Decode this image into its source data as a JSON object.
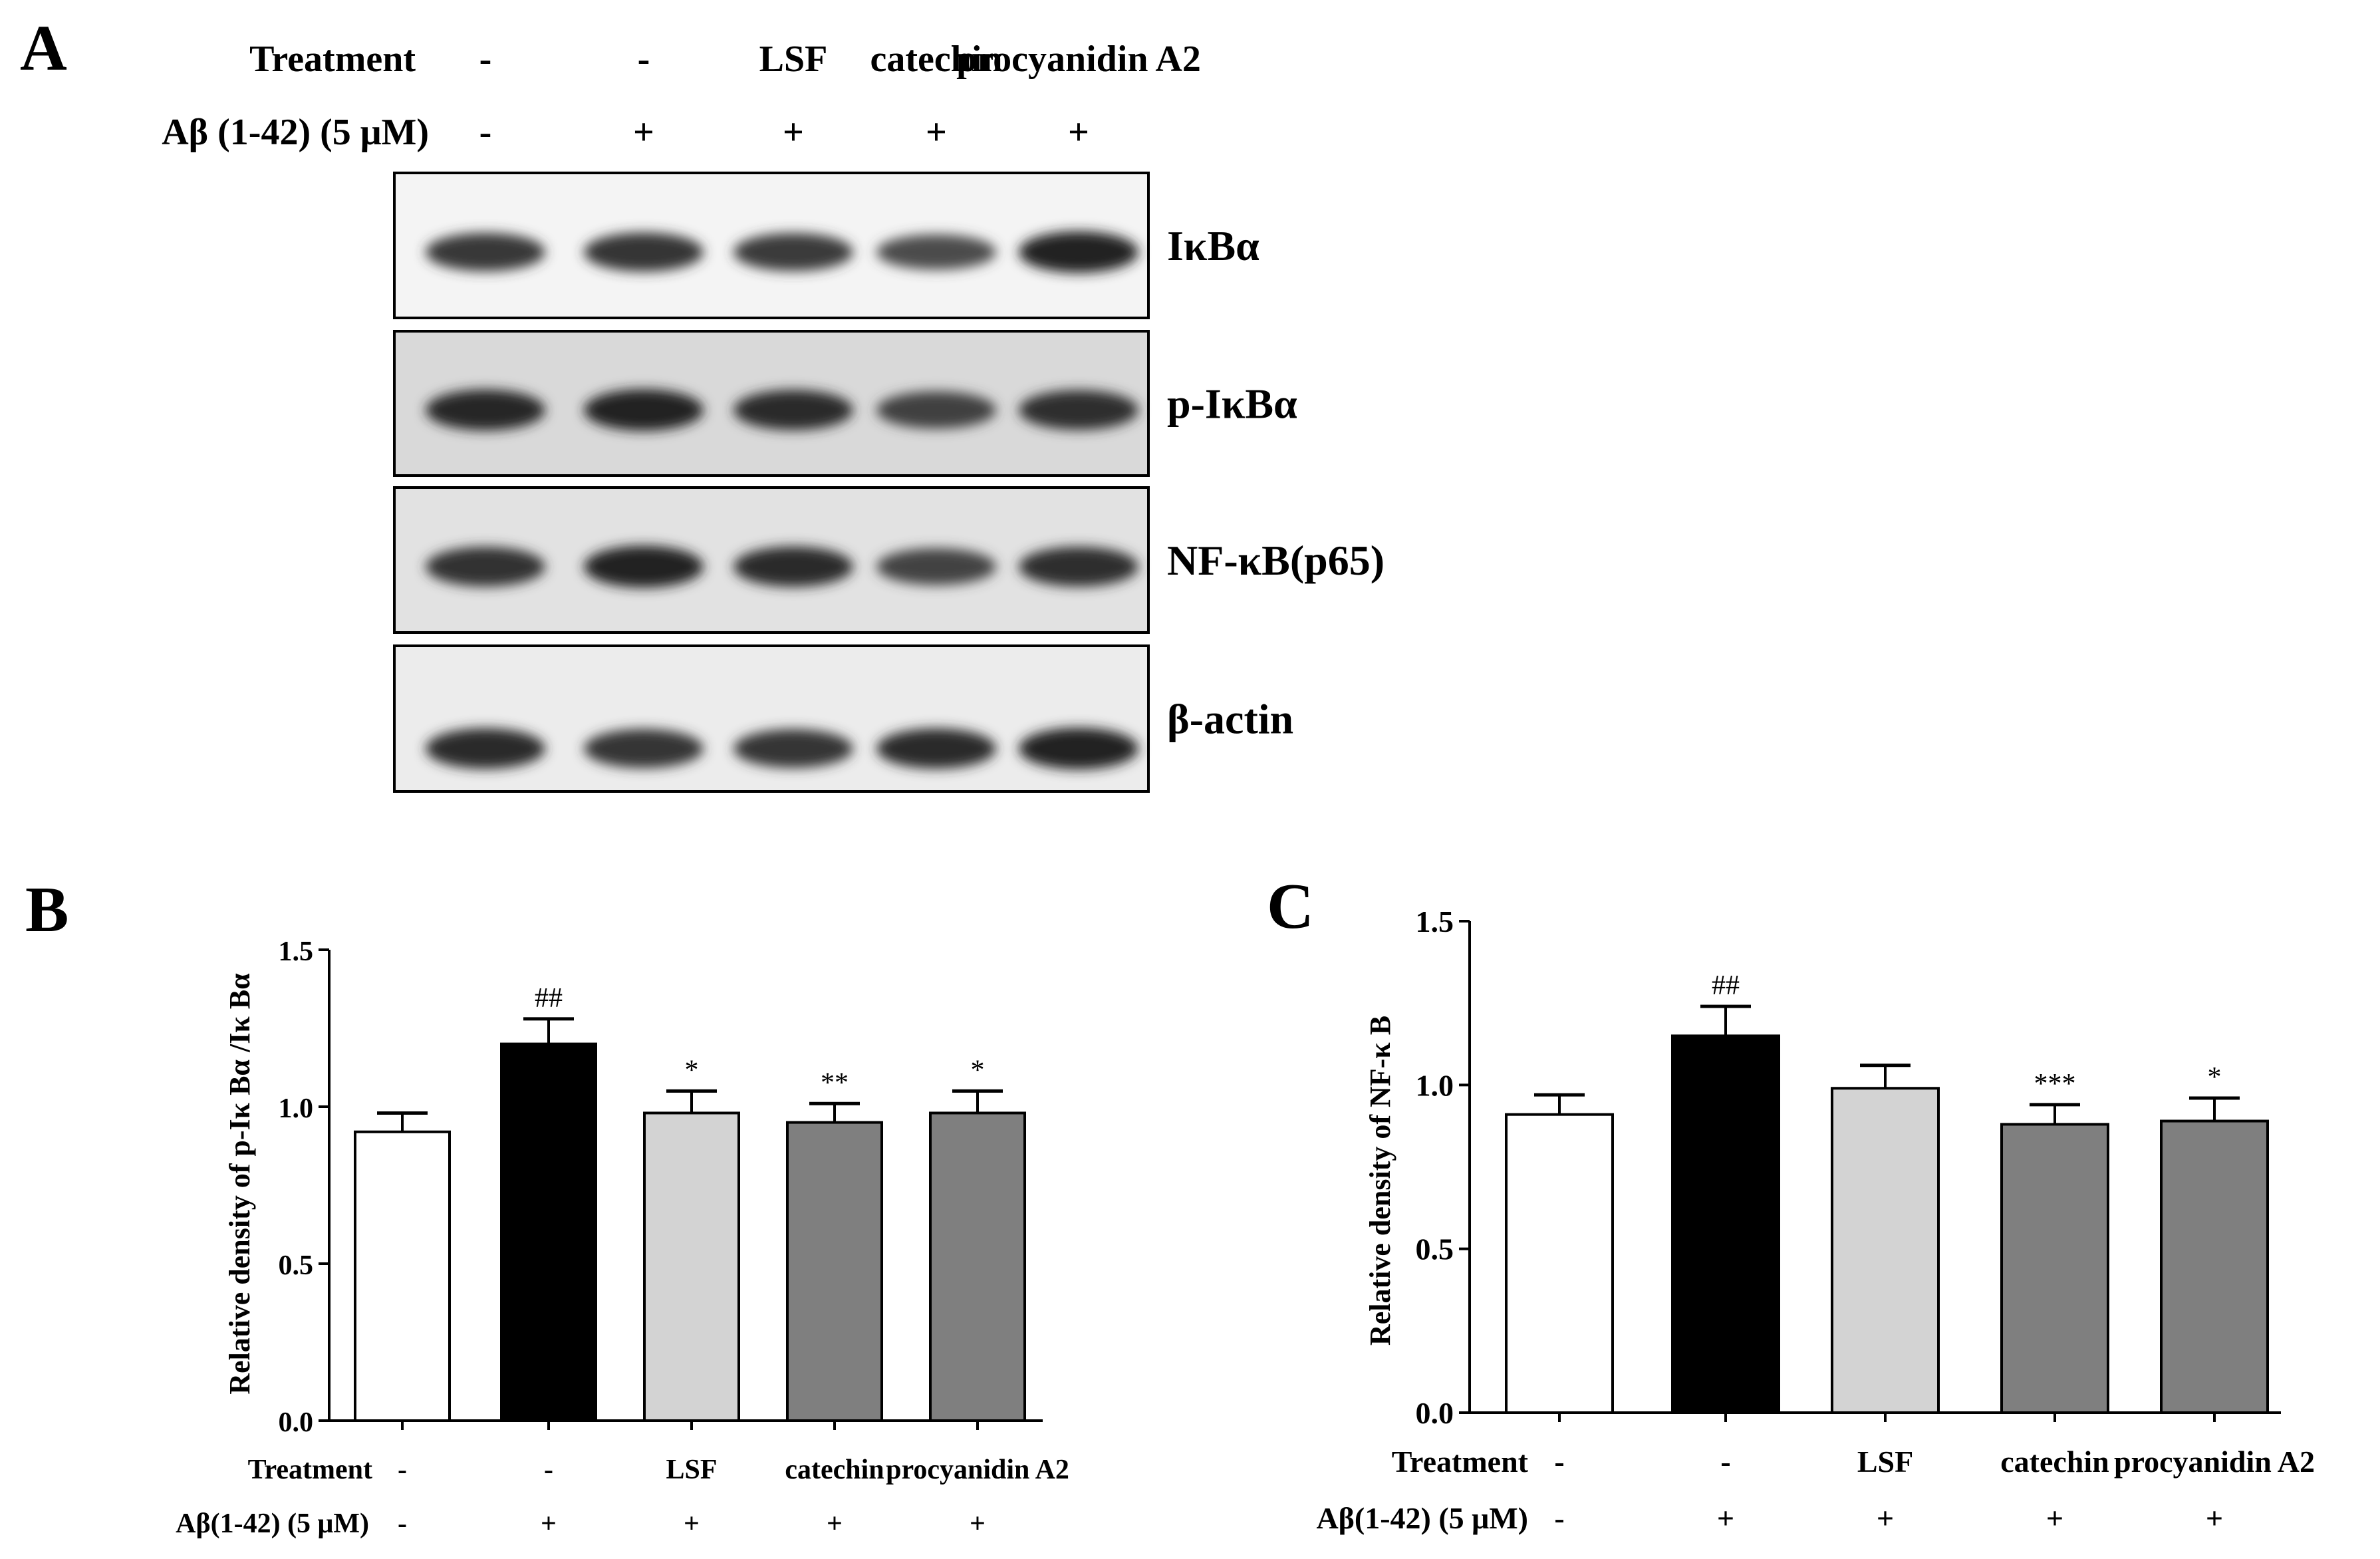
{
  "panelA": {
    "letter": "A",
    "row1_label": "Treatment",
    "row2_label": "Aβ (1-42) (5 μM)",
    "lanes": [
      {
        "treatment": "-",
        "abeta": "-"
      },
      {
        "treatment": "-",
        "abeta": "+"
      },
      {
        "treatment": "LSF",
        "abeta": "+"
      },
      {
        "treatment": "catechin",
        "abeta": "+"
      },
      {
        "treatment": "procyanidin A2",
        "abeta": "+"
      }
    ],
    "blots": [
      {
        "label": "IκBα",
        "intensity": [
          0.78,
          0.82,
          0.76,
          0.62,
          0.95
        ]
      },
      {
        "label": "p-IκBα",
        "intensity": [
          0.92,
          0.95,
          0.88,
          0.72,
          0.86
        ]
      },
      {
        "label": "NF-κB(p65)",
        "intensity": [
          0.85,
          0.97,
          0.88,
          0.7,
          0.86
        ]
      },
      {
        "label": "β-actin",
        "intensity": [
          0.9,
          0.82,
          0.8,
          0.88,
          0.95
        ]
      }
    ]
  },
  "chart_data": [
    {
      "panel": "B",
      "type": "bar",
      "title": "",
      "ylabel": "Relative density of p-Iκ Bα /Iκ Bα",
      "ylim": [
        0,
        1.5
      ],
      "yticks": [
        "0.0",
        "0.5",
        "1.0",
        "1.5"
      ],
      "xlabel": "",
      "row1_label": "Treatment",
      "row2_label": "Aβ(1-42) (5 μM)",
      "categories_treatment": [
        "-",
        "-",
        "LSF",
        "catechin",
        "procyanidin A2"
      ],
      "categories_abeta": [
        "-",
        "+",
        "+",
        "+",
        "+"
      ],
      "values": [
        0.92,
        1.2,
        0.98,
        0.95,
        0.98
      ],
      "errors": [
        0.06,
        0.08,
        0.07,
        0.06,
        0.07
      ],
      "annotations": [
        "",
        "##",
        "*",
        "**",
        "*"
      ],
      "colors": [
        "#ffffff",
        "#000000",
        "#d3d3d3",
        "#7f7f7f",
        "#7f7f7f"
      ],
      "grid": false
    },
    {
      "panel": "C",
      "type": "bar",
      "title": "",
      "ylabel": "Relative density of NF-κ B",
      "ylim": [
        0,
        1.5
      ],
      "yticks": [
        "0.0",
        "0.5",
        "1.0",
        "1.5"
      ],
      "xlabel": "",
      "row1_label": "Treatment",
      "row2_label": "Aβ(1-42) (5 μM)",
      "categories_treatment": [
        "-",
        "-",
        "LSF",
        "catechin",
        "procyanidin A2"
      ],
      "categories_abeta": [
        "-",
        "+",
        "+",
        "+",
        "+"
      ],
      "values": [
        0.91,
        1.15,
        0.99,
        0.88,
        0.89
      ],
      "errors": [
        0.06,
        0.09,
        0.07,
        0.06,
        0.07
      ],
      "annotations": [
        "",
        "##",
        "",
        "***",
        "*"
      ],
      "colors": [
        "#ffffff",
        "#000000",
        "#d3d3d3",
        "#7f7f7f",
        "#7f7f7f"
      ],
      "grid": false
    }
  ]
}
